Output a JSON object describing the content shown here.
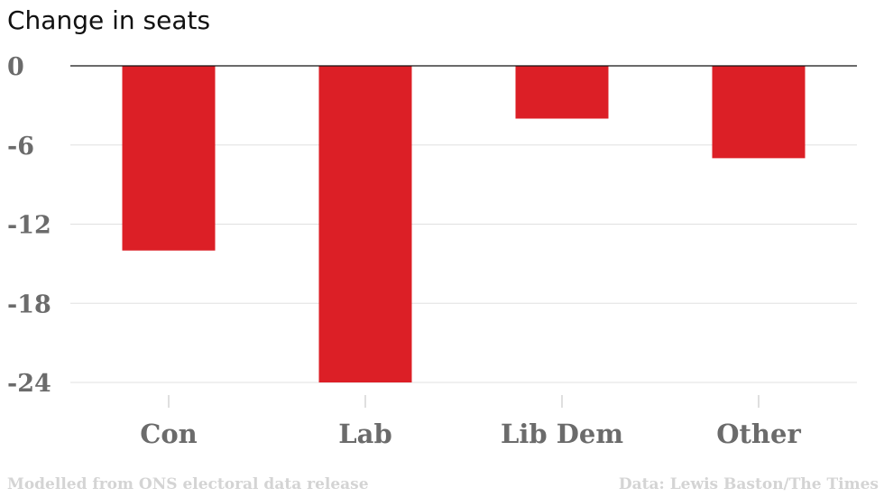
{
  "chart_data": {
    "type": "bar",
    "title": "Change in seats",
    "categories": [
      "Con",
      "Lab",
      "Lib Dem",
      "Other"
    ],
    "values": [
      -14,
      -24,
      -4,
      -7
    ],
    "ylim": [
      -24,
      0
    ],
    "yticks": [
      0,
      -6,
      -12,
      -18,
      -24
    ],
    "xlabel": "",
    "ylabel": "",
    "grid": true,
    "legend": "none",
    "bar_color": "#dc1f26"
  },
  "footer": {
    "source_note": "Modelled from ONS electoral data release",
    "credit": "Data: Lewis Baston/The Times"
  }
}
